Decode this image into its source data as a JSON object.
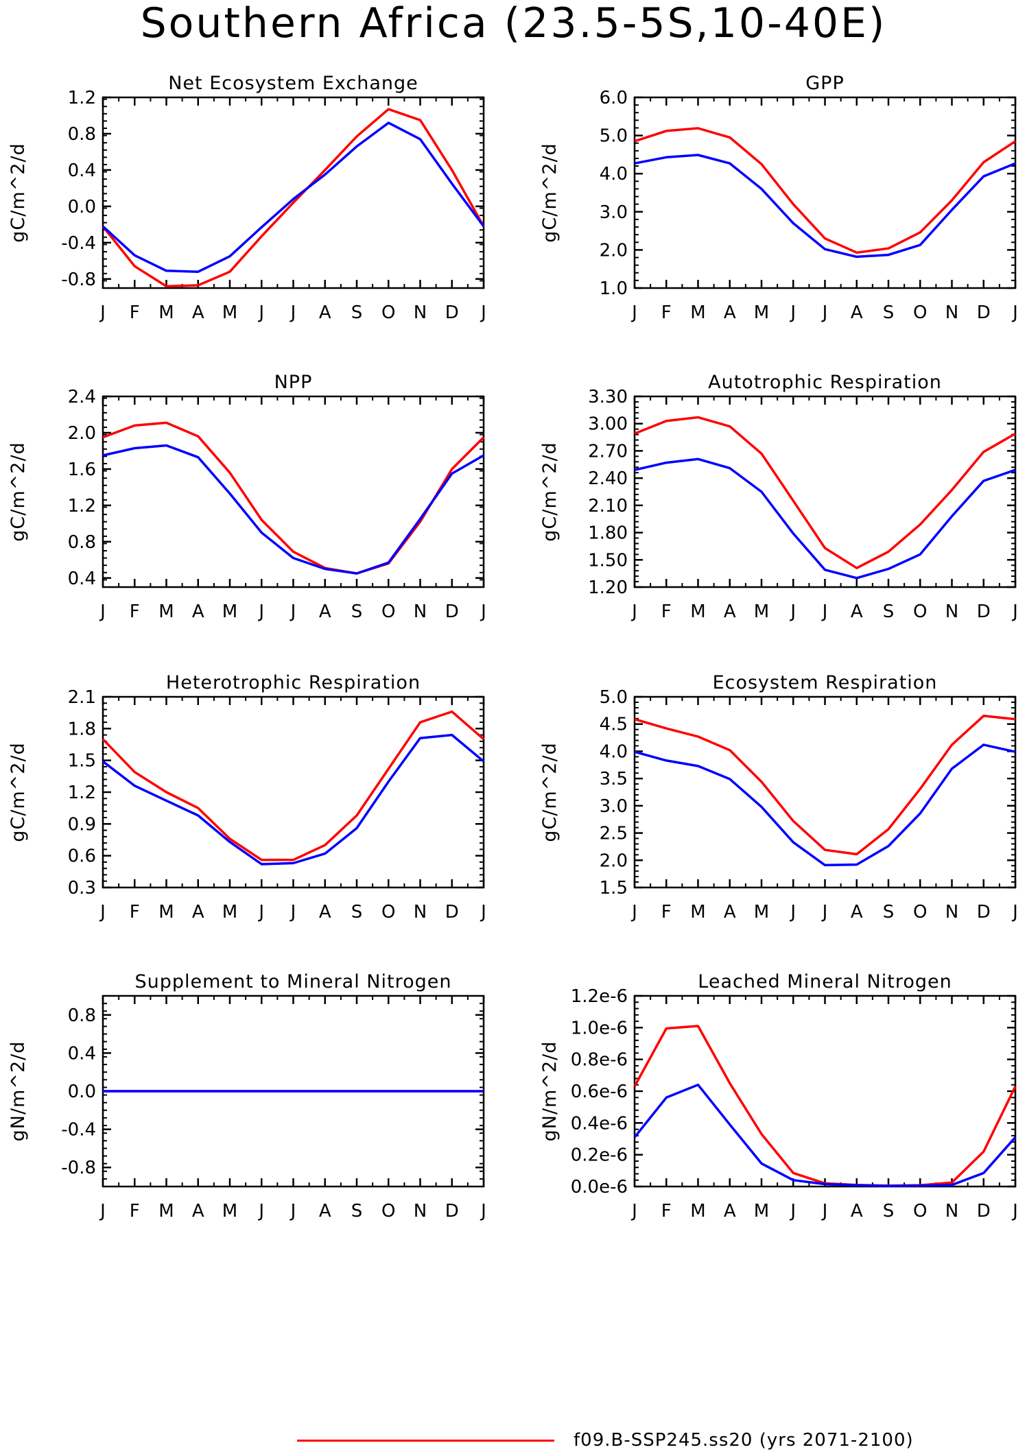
{
  "title": "Southern Africa (23.5-5S,10-40E)",
  "colors": {
    "model_a": "#ff0000",
    "model_b": "#0000ff"
  },
  "legend": [
    {
      "label": "f09.B-SSP245.ss20 (yrs 2071-2100)",
      "color": "#ff0000"
    }
  ],
  "chart_data": [
    {
      "type": "line",
      "title": "Net Ecosystem Exchange",
      "xlabel": "",
      "ylabel": "gC/m^2/d",
      "categories": [
        "J",
        "F",
        "M",
        "A",
        "M",
        "J",
        "J",
        "A",
        "S",
        "O",
        "N",
        "D",
        "J"
      ],
      "ylim": [
        -0.9,
        1.2
      ],
      "yticks": [
        -0.8,
        -0.4,
        0.0,
        0.4,
        0.8,
        1.2
      ],
      "ytick_labels": [
        "-0.8",
        "-0.4",
        "0.0",
        "0.4",
        "0.8",
        "1.2"
      ],
      "series": [
        {
          "color": "#ff0000",
          "values": [
            -0.22,
            -0.66,
            -0.88,
            -0.87,
            -0.72,
            -0.33,
            0.04,
            0.4,
            0.77,
            1.07,
            0.95,
            0.4,
            -0.22
          ]
        },
        {
          "color": "#0000ff",
          "values": [
            -0.22,
            -0.54,
            -0.71,
            -0.72,
            -0.55,
            -0.23,
            0.08,
            0.35,
            0.66,
            0.92,
            0.74,
            0.25,
            -0.22
          ]
        }
      ]
    },
    {
      "type": "line",
      "title": "GPP",
      "xlabel": "",
      "ylabel": "gC/m^2/d",
      "categories": [
        "J",
        "F",
        "M",
        "A",
        "M",
        "J",
        "J",
        "A",
        "S",
        "O",
        "N",
        "D",
        "J"
      ],
      "ylim": [
        1.0,
        6.0
      ],
      "yticks": [
        1.0,
        2.0,
        3.0,
        4.0,
        5.0,
        6.0
      ],
      "ytick_labels": [
        "1.0",
        "2.0",
        "3.0",
        "4.0",
        "5.0",
        "6.0"
      ],
      "series": [
        {
          "color": "#ff0000",
          "values": [
            4.85,
            5.12,
            5.19,
            4.95,
            4.25,
            3.2,
            2.3,
            1.93,
            2.04,
            2.46,
            3.3,
            4.3,
            4.85
          ]
        },
        {
          "color": "#0000ff",
          "values": [
            4.27,
            4.43,
            4.49,
            4.27,
            3.6,
            2.7,
            2.02,
            1.82,
            1.87,
            2.13,
            3.05,
            3.93,
            4.27
          ]
        }
      ]
    },
    {
      "type": "line",
      "title": "NPP",
      "xlabel": "",
      "ylabel": "gC/m^2/d",
      "categories": [
        "J",
        "F",
        "M",
        "A",
        "M",
        "J",
        "J",
        "A",
        "S",
        "O",
        "N",
        "D",
        "J"
      ],
      "ylim": [
        0.3,
        2.4
      ],
      "yticks": [
        0.4,
        0.8,
        1.2,
        1.6,
        2.0,
        2.4
      ],
      "ytick_labels": [
        "0.4",
        "0.8",
        "1.2",
        "1.6",
        "2.0",
        "2.4"
      ],
      "series": [
        {
          "color": "#ff0000",
          "values": [
            1.95,
            2.08,
            2.11,
            1.96,
            1.56,
            1.04,
            0.69,
            0.51,
            0.45,
            0.56,
            1.02,
            1.6,
            1.95
          ]
        },
        {
          "color": "#0000ff",
          "values": [
            1.75,
            1.83,
            1.86,
            1.73,
            1.33,
            0.9,
            0.62,
            0.5,
            0.45,
            0.57,
            1.05,
            1.55,
            1.75
          ]
        }
      ]
    },
    {
      "type": "line",
      "title": "Autotrophic Respiration",
      "xlabel": "",
      "ylabel": "gC/m^2/d",
      "categories": [
        "J",
        "F",
        "M",
        "A",
        "M",
        "J",
        "J",
        "A",
        "S",
        "O",
        "N",
        "D",
        "J"
      ],
      "ylim": [
        1.2,
        3.3
      ],
      "yticks": [
        1.2,
        1.5,
        1.8,
        2.1,
        2.4,
        2.7,
        3.0,
        3.3
      ],
      "ytick_labels": [
        "1.20",
        "1.50",
        "1.80",
        "2.10",
        "2.40",
        "2.70",
        "3.00",
        "3.30"
      ],
      "series": [
        {
          "color": "#ff0000",
          "values": [
            2.89,
            3.03,
            3.07,
            2.97,
            2.67,
            2.15,
            1.63,
            1.41,
            1.59,
            1.89,
            2.27,
            2.69,
            2.89
          ]
        },
        {
          "color": "#0000ff",
          "values": [
            2.49,
            2.57,
            2.61,
            2.51,
            2.25,
            1.79,
            1.39,
            1.3,
            1.4,
            1.56,
            1.98,
            2.37,
            2.49
          ]
        }
      ]
    },
    {
      "type": "line",
      "title": "Heterotrophic Respiration",
      "xlabel": "",
      "ylabel": "gC/m^2/d",
      "categories": [
        "J",
        "F",
        "M",
        "A",
        "M",
        "J",
        "J",
        "A",
        "S",
        "O",
        "N",
        "D",
        "J"
      ],
      "ylim": [
        0.3,
        2.1
      ],
      "yticks": [
        0.3,
        0.6,
        0.9,
        1.2,
        1.5,
        1.8,
        2.1
      ],
      "ytick_labels": [
        "0.3",
        "0.6",
        "0.9",
        "1.2",
        "1.5",
        "1.8",
        "2.1"
      ],
      "series": [
        {
          "color": "#ff0000",
          "values": [
            1.7,
            1.39,
            1.2,
            1.05,
            0.76,
            0.56,
            0.56,
            0.7,
            0.98,
            1.42,
            1.86,
            1.96,
            1.7
          ]
        },
        {
          "color": "#0000ff",
          "values": [
            1.49,
            1.26,
            1.12,
            0.98,
            0.73,
            0.52,
            0.53,
            0.62,
            0.86,
            1.3,
            1.71,
            1.74,
            1.49
          ]
        }
      ]
    },
    {
      "type": "line",
      "title": "Ecosystem Respiration",
      "xlabel": "",
      "ylabel": "gC/m^2/d",
      "categories": [
        "J",
        "F",
        "M",
        "A",
        "M",
        "J",
        "J",
        "A",
        "S",
        "O",
        "N",
        "D",
        "J"
      ],
      "ylim": [
        1.5,
        5.0
      ],
      "yticks": [
        1.5,
        2.0,
        2.5,
        3.0,
        3.5,
        4.0,
        4.5,
        5.0
      ],
      "ytick_labels": [
        "1.5",
        "2.0",
        "2.5",
        "3.0",
        "3.5",
        "4.0",
        "4.5",
        "5.0"
      ],
      "series": [
        {
          "color": "#ff0000",
          "values": [
            4.59,
            4.42,
            4.27,
            4.02,
            3.44,
            2.72,
            2.19,
            2.11,
            2.57,
            3.31,
            4.12,
            4.65,
            4.59
          ]
        },
        {
          "color": "#0000ff",
          "values": [
            3.99,
            3.83,
            3.73,
            3.49,
            2.98,
            2.33,
            1.91,
            1.92,
            2.26,
            2.86,
            3.68,
            4.12,
            3.99
          ]
        }
      ]
    },
    {
      "type": "line",
      "title": "Supplement to Mineral Nitrogen",
      "xlabel": "",
      "ylabel": "gN/m^2/d",
      "categories": [
        "J",
        "F",
        "M",
        "A",
        "M",
        "J",
        "J",
        "A",
        "S",
        "O",
        "N",
        "D",
        "J"
      ],
      "ylim": [
        -1.0,
        1.0
      ],
      "yticks": [
        -0.8,
        -0.4,
        0.0,
        0.4,
        0.8
      ],
      "ytick_labels": [
        "-0.8",
        "-0.4",
        "0.0",
        "0.4",
        "0.8"
      ],
      "series": [
        {
          "color": "#ff0000",
          "values": [
            0,
            0,
            0,
            0,
            0,
            0,
            0,
            0,
            0,
            0,
            0,
            0,
            0
          ]
        },
        {
          "color": "#0000ff",
          "values": [
            0,
            0,
            0,
            0,
            0,
            0,
            0,
            0,
            0,
            0,
            0,
            0,
            0
          ]
        }
      ]
    },
    {
      "type": "line",
      "title": "Leached Mineral Nitrogen",
      "xlabel": "",
      "ylabel": "gN/m^2/d",
      "categories": [
        "J",
        "F",
        "M",
        "A",
        "M",
        "J",
        "J",
        "A",
        "S",
        "O",
        "N",
        "D",
        "J"
      ],
      "ylim": [
        0,
        1.2e-06
      ],
      "yticks": [
        0,
        2e-07,
        4e-07,
        6e-07,
        8e-07,
        1e-06,
        1.2e-06
      ],
      "ytick_labels": [
        "0.0e-6",
        "0.2e-6",
        "0.4e-6",
        "0.6e-6",
        "0.8e-6",
        "1.0e-6",
        "1.2e-6"
      ],
      "series": [
        {
          "color": "#ff0000",
          "values": [
            6.3e-07,
            9.95e-07,
            1.01e-06,
            6.5e-07,
            3.3e-07,
            8.5e-08,
            2e-08,
            1e-08,
            5e-09,
            8e-09,
            2.5e-08,
            2.2e-07,
            6.3e-07
          ]
        },
        {
          "color": "#0000ff",
          "values": [
            3.1e-07,
            5.6e-07,
            6.4e-07,
            3.9e-07,
            1.45e-07,
            4e-08,
            1.5e-08,
            8e-09,
            4e-09,
            5e-09,
            1e-08,
            8.5e-08,
            3.1e-07
          ]
        }
      ]
    }
  ]
}
